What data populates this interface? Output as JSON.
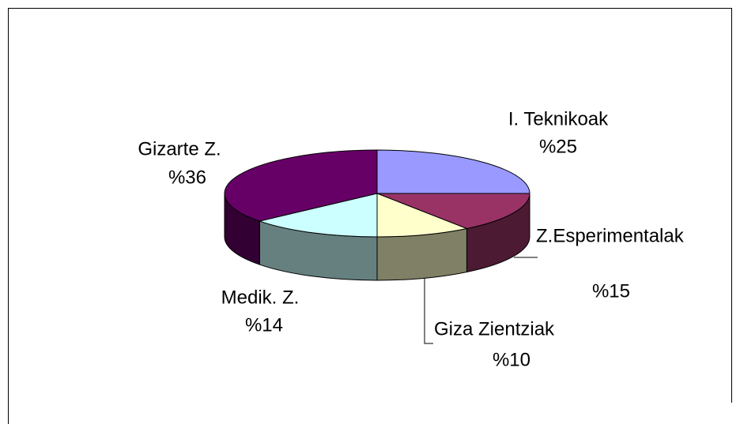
{
  "chart_data": {
    "type": "pie3d",
    "categories": [
      "I. Teknikoak",
      "Z.Esperimentalak",
      "Giza Zientziak",
      "Medik. Z.",
      "Gizarte Z."
    ],
    "values": [
      25,
      15,
      10,
      14,
      36
    ],
    "value_labels": [
      "%25",
      "%15",
      "%10",
      "%14",
      "%36"
    ],
    "colors": [
      "#9999ff",
      "#993366",
      "#ffffcc",
      "#ccffff",
      "#660066"
    ]
  }
}
